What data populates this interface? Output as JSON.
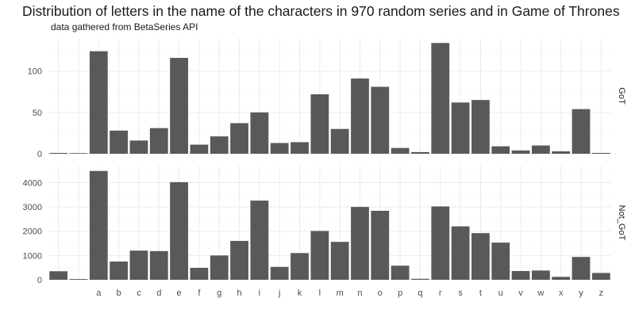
{
  "chart_data": {
    "type": "bar",
    "title": "Distribution of letters in the name of the characters in 970 random series and in Game of Thrones",
    "subtitle": "data gathered from BetaSeries API",
    "xlabel": "",
    "ylabel": "",
    "grid": true,
    "categories": [
      "",
      "",
      "a",
      "b",
      "c",
      "d",
      "e",
      "f",
      "g",
      "h",
      "i",
      "j",
      "k",
      "l",
      "m",
      "n",
      "o",
      "p",
      "q",
      "r",
      "s",
      "t",
      "u",
      "v",
      "w",
      "x",
      "y",
      "z"
    ],
    "panels": [
      {
        "name": "GoT",
        "ylim": [
          0,
          140
        ],
        "yticks": [
          0,
          50,
          100
        ],
        "values": [
          1,
          0,
          124,
          28,
          16,
          31,
          116,
          11,
          21,
          37,
          50,
          13,
          14,
          72,
          30,
          91,
          81,
          7,
          2,
          134,
          62,
          65,
          9,
          4,
          10,
          3,
          54,
          1
        ]
      },
      {
        "name": "Not_GoT",
        "ylim": [
          0,
          4700
        ],
        "yticks": [
          0,
          1000,
          2000,
          3000,
          4000
        ],
        "values": [
          350,
          30,
          4480,
          750,
          1200,
          1180,
          4020,
          490,
          1000,
          1600,
          3260,
          530,
          1100,
          2010,
          1560,
          3000,
          2840,
          580,
          40,
          3020,
          2200,
          1920,
          1530,
          360,
          380,
          120,
          940,
          280
        ]
      }
    ],
    "colors": {
      "bar": "#595959",
      "grid_major": "#ebebeb",
      "grid_minor": "#f5f5f5",
      "text": "#4d4d4d"
    }
  }
}
